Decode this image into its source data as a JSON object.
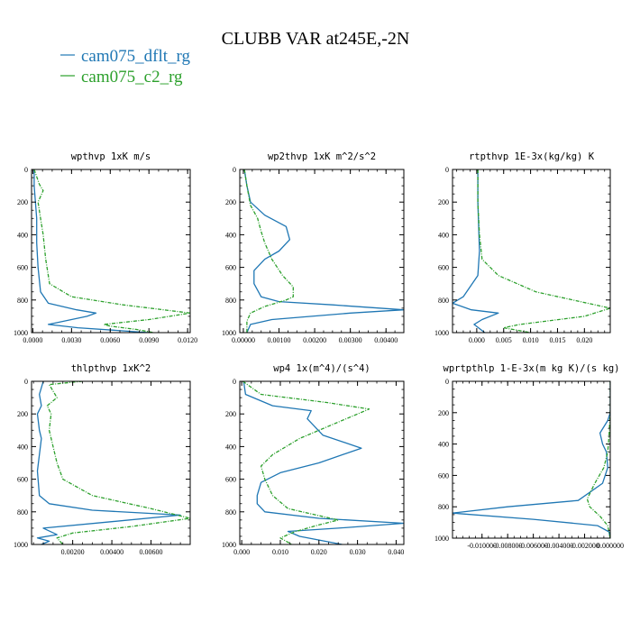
{
  "figure": {
    "title": "CLUBB VAR at245E,-2N",
    "legend": [
      {
        "label": "cam075_dflt_rg",
        "color": "#1f77b4"
      },
      {
        "label": "cam075_c2_rg",
        "color": "#2ca02c"
      }
    ]
  },
  "chart_data": [
    {
      "type": "line",
      "title": "wpthvp   1xK m/s",
      "xlim": [
        -0.0001,
        0.0122
      ],
      "ylim": [
        1000,
        0
      ],
      "xticks": [
        {
          "v": 0,
          "l": "0.0000"
        },
        {
          "v": 0.003,
          "l": "0.0030"
        },
        {
          "v": 0.006,
          "l": "0.0060"
        },
        {
          "v": 0.009,
          "l": "0.0090"
        },
        {
          "v": 0.012,
          "l": "0.0120"
        }
      ],
      "yticks": [
        0,
        200,
        400,
        600,
        800,
        1000
      ],
      "series": [
        {
          "name": "cam075_dflt_rg",
          "color": "#1f77b4",
          "dashed": false,
          "x": [
            0.0001,
            0.0001,
            0.0002,
            0.0003,
            0.0003,
            0.0004,
            0.0006,
            0.0012,
            0.0034,
            0.0049,
            0.0042,
            0.0018,
            0.0012,
            0.0035,
            0.009
          ],
          "y": [
            0,
            100,
            200,
            300,
            450,
            600,
            750,
            820,
            860,
            880,
            900,
            940,
            950,
            970,
            1000
          ]
        },
        {
          "name": "cam075_c2_rg",
          "color": "#2ca02c",
          "dashed": true,
          "x": [
            0.0001,
            0.0005,
            0.0008,
            0.0004,
            0.0006,
            0.0008,
            0.001,
            0.0013,
            0.003,
            0.007,
            0.0122,
            0.009,
            0.0055,
            0.006,
            0.008,
            0.0094
          ],
          "y": [
            0,
            90,
            130,
            200,
            300,
            400,
            550,
            700,
            780,
            830,
            880,
            920,
            950,
            960,
            980,
            1000
          ]
        }
      ]
    },
    {
      "type": "line",
      "title": "wp2thvp   1xK m^2/s^2",
      "xlim": [
        -0.0001,
        0.0045
      ],
      "ylim": [
        1000,
        0
      ],
      "xticks": [
        {
          "v": 0,
          "l": "0.00000"
        },
        {
          "v": 0.001,
          "l": "0.00100"
        },
        {
          "v": 0.002,
          "l": "0.00200"
        },
        {
          "v": 0.003,
          "l": "0.00300"
        },
        {
          "v": 0.004,
          "l": "0.00400"
        }
      ],
      "yticks": [
        0,
        200,
        400,
        600,
        800,
        1000
      ],
      "series": [
        {
          "name": "cam075_dflt_rg",
          "color": "#1f77b4",
          "dashed": false,
          "x": [
            3e-05,
            0.0001,
            0.0002,
            0.0006,
            0.0012,
            0.0013,
            0.001,
            0.0006,
            0.0003,
            0.0003,
            0.0005,
            0.001,
            0.0025,
            0.0045,
            0.003,
            0.0008,
            0.0002,
            0.0001
          ],
          "y": [
            0,
            100,
            200,
            280,
            350,
            430,
            500,
            550,
            620,
            700,
            780,
            810,
            830,
            860,
            880,
            920,
            950,
            1000
          ]
        },
        {
          "name": "cam075_c2_rg",
          "color": "#2ca02c",
          "dashed": true,
          "x": [
            3e-05,
            0.0001,
            0.0002,
            0.0004,
            0.0005,
            0.0006,
            0.0008,
            0.0011,
            0.0014,
            0.0014,
            0.0012,
            0.0006,
            0.0002,
            0.0001,
            0.0001
          ],
          "y": [
            0,
            100,
            220,
            300,
            380,
            450,
            550,
            650,
            720,
            780,
            800,
            840,
            880,
            930,
            1000
          ]
        }
      ]
    },
    {
      "type": "line",
      "title": "rtpthvp   1E-3x(kg/kg) K",
      "xlim": [
        -0.0045,
        0.0248
      ],
      "ylim": [
        1000,
        0
      ],
      "xticks": [
        {
          "v": 0,
          "l": "0.000"
        },
        {
          "v": 0.005,
          "l": "0.005"
        },
        {
          "v": 0.01,
          "l": "0.010"
        },
        {
          "v": 0.015,
          "l": "0.015"
        },
        {
          "v": 0.02,
          "l": "0.020"
        }
      ],
      "yticks": [
        0,
        200,
        400,
        600,
        800,
        1000
      ],
      "series": [
        {
          "name": "cam075_dflt_rg",
          "color": "#1f77b4",
          "dashed": false,
          "x": [
            0.0002,
            0.0002,
            0.0003,
            0.0004,
            0.0005,
            0.0002,
            -0.0025,
            -0.0045,
            -0.001,
            0.004,
            0.001,
            -0.0005,
            0.0015
          ],
          "y": [
            0,
            200,
            300,
            400,
            500,
            650,
            780,
            820,
            860,
            880,
            920,
            950,
            1000
          ]
        },
        {
          "name": "cam075_c2_rg",
          "color": "#2ca02c",
          "dashed": true,
          "x": [
            0.0002,
            0.0002,
            0.0005,
            0.001,
            0.004,
            0.011,
            0.0248,
            0.02,
            0.008,
            0.005,
            0.01
          ],
          "y": [
            0,
            200,
            400,
            550,
            650,
            750,
            850,
            900,
            950,
            970,
            1000
          ]
        }
      ]
    },
    {
      "type": "line",
      "title": "thlpthvp   1xK^2",
      "xlim": [
        -0.0001,
        0.008
      ],
      "ylim": [
        1000,
        0
      ],
      "xticks": [
        {
          "v": 0.002,
          "l": "0.00200"
        },
        {
          "v": 0.004,
          "l": "0.00400"
        },
        {
          "v": 0.006,
          "l": "0.00600"
        }
      ],
      "yticks": [
        0,
        200,
        400,
        600,
        800,
        1000
      ],
      "series": [
        {
          "name": "cam075_dflt_rg",
          "color": "#1f77b4",
          "dashed": false,
          "x": [
            0.0005,
            0.0003,
            0.0004,
            0.0002,
            0.0003,
            0.0004,
            0.0003,
            0.0002,
            0.0003,
            0.0008,
            0.003,
            0.0075,
            0.004,
            0.0005,
            0.0012,
            0.0002,
            0.0008,
            0.0004
          ],
          "y": [
            0,
            80,
            150,
            200,
            300,
            350,
            450,
            550,
            700,
            750,
            790,
            820,
            860,
            900,
            940,
            960,
            980,
            1000
          ]
        },
        {
          "name": "cam075_c2_rg",
          "color": "#2ca02c",
          "dashed": true,
          "x": [
            0.0025,
            0.0008,
            0.0012,
            0.0007,
            0.0009,
            0.0008,
            0.001,
            0.0012,
            0.0015,
            0.003,
            0.006,
            0.008,
            0.005,
            0.002,
            0.0012,
            0.0015
          ],
          "y": [
            0,
            20,
            100,
            150,
            200,
            300,
            400,
            500,
            600,
            700,
            780,
            840,
            890,
            930,
            960,
            1000
          ]
        }
      ]
    },
    {
      "type": "line",
      "title": "wp4   1x(m^4)/(s^4)",
      "xlim": [
        -0.0005,
        0.042
      ],
      "ylim": [
        1000,
        0
      ],
      "xticks": [
        {
          "v": 0,
          "l": "0.000"
        },
        {
          "v": 0.01,
          "l": "0.010"
        },
        {
          "v": 0.02,
          "l": "0.020"
        },
        {
          "v": 0.03,
          "l": "0.030"
        },
        {
          "v": 0.04,
          "l": "0.040"
        }
      ],
      "yticks": [
        0,
        200,
        400,
        600,
        800,
        1000
      ],
      "series": [
        {
          "name": "cam075_dflt_rg",
          "color": "#1f77b4",
          "dashed": false,
          "x": [
            0.0005,
            0.001,
            0.008,
            0.018,
            0.017,
            0.021,
            0.031,
            0.02,
            0.01,
            0.005,
            0.004,
            0.004,
            0.006,
            0.02,
            0.042,
            0.025,
            0.012,
            0.015,
            0.026
          ],
          "y": [
            0,
            80,
            150,
            180,
            230,
            330,
            410,
            500,
            560,
            620,
            700,
            750,
            800,
            840,
            870,
            900,
            920,
            950,
            1000
          ]
        },
        {
          "name": "cam075_c2_rg",
          "color": "#2ca02c",
          "dashed": true,
          "x": [
            0.0003,
            0.005,
            0.022,
            0.033,
            0.025,
            0.015,
            0.008,
            0.005,
            0.006,
            0.008,
            0.012,
            0.025,
            0.02,
            0.014,
            0.01,
            0.013
          ],
          "y": [
            0,
            80,
            130,
            170,
            250,
            350,
            450,
            520,
            600,
            700,
            780,
            850,
            880,
            920,
            960,
            1000
          ]
        }
      ]
    },
    {
      "type": "line",
      "title": "wprtpthlp   1-E-3x(m kg K)/(s kg)",
      "xlim": [
        -0.0123,
        0.0
      ],
      "ylim": [
        1000,
        0
      ],
      "xticks": [
        {
          "v": -0.01,
          "l": "-0.010000"
        },
        {
          "v": -0.008,
          "l": "-0.008000"
        },
        {
          "v": -0.006,
          "l": "-0.006000"
        },
        {
          "v": -0.004,
          "l": "-0.004000"
        },
        {
          "v": -0.002,
          "l": "-0.002000"
        },
        {
          "v": 0,
          "l": "0.000000"
        }
      ],
      "yticks": [
        0,
        200,
        400,
        600,
        800,
        1000
      ],
      "series": [
        {
          "name": "cam075_dflt_rg",
          "color": "#1f77b4",
          "dashed": false,
          "x": [
            0,
            0,
            -0.0002,
            -0.0008,
            -0.0006,
            -0.0003,
            -0.0002,
            -0.0006,
            -0.0025,
            -0.008,
            -0.0123,
            -0.006,
            -0.001,
            -0.0001,
            0
          ],
          "y": [
            0,
            200,
            250,
            330,
            400,
            450,
            550,
            650,
            760,
            800,
            840,
            880,
            920,
            960,
            1000
          ]
        },
        {
          "name": "cam075_c2_rg",
          "color": "#2ca02c",
          "dashed": true,
          "x": [
            0,
            0,
            -0.0001,
            -0.0002,
            -0.0005,
            -0.0012,
            -0.0018,
            -0.0016,
            -0.0008,
            -0.0002,
            0
          ],
          "y": [
            0,
            200,
            350,
            450,
            550,
            650,
            750,
            800,
            860,
            920,
            1000
          ]
        }
      ]
    }
  ]
}
